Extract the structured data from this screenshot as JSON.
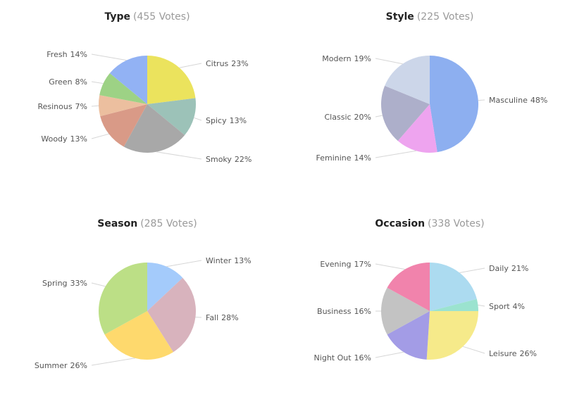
{
  "chart_data": [
    {
      "type": "pie",
      "title": "Type",
      "votes_label": "(455 Votes)",
      "slices": [
        {
          "label": "Citrus",
          "pct_text": "23%",
          "value": 23,
          "color": "#ebe35d"
        },
        {
          "label": "Spicy",
          "pct_text": "13%",
          "value": 13,
          "color": "#9cc2b8"
        },
        {
          "label": "Smoky",
          "pct_text": "22%",
          "value": 22,
          "color": "#a8a8a8"
        },
        {
          "label": "Woody",
          "pct_text": "13%",
          "value": 13,
          "color": "#d99a87"
        },
        {
          "label": "Resinous",
          "pct_text": "7%",
          "value": 7,
          "color": "#ecbf9f"
        },
        {
          "label": "Green",
          "pct_text": "8%",
          "value": 8,
          "color": "#9dd285"
        },
        {
          "label": "Fresh",
          "pct_text": "14%",
          "value": 14,
          "color": "#92b2f4"
        }
      ]
    },
    {
      "type": "pie",
      "title": "Style",
      "votes_label": "(225 Votes)",
      "slices": [
        {
          "label": "Masculine",
          "pct_text": "48%",
          "value": 48,
          "color": "#8daff0"
        },
        {
          "label": "Feminine",
          "pct_text": "14%",
          "value": 14,
          "color": "#eea4ef"
        },
        {
          "label": "Classic",
          "pct_text": "20%",
          "value": 20,
          "color": "#adafca"
        },
        {
          "label": "Modern",
          "pct_text": "19%",
          "value": 19,
          "color": "#ccd6e9"
        }
      ]
    },
    {
      "type": "pie",
      "title": "Season",
      "votes_label": "(285 Votes)",
      "slices": [
        {
          "label": "Winter",
          "pct_text": "13%",
          "value": 13,
          "color": "#a4cbfb"
        },
        {
          "label": "Fall",
          "pct_text": "28%",
          "value": 28,
          "color": "#d8b3bd"
        },
        {
          "label": "Summer",
          "pct_text": "26%",
          "value": 26,
          "color": "#fed96d"
        },
        {
          "label": "Spring",
          "pct_text": "33%",
          "value": 33,
          "color": "#bcdf86"
        }
      ]
    },
    {
      "type": "pie",
      "title": "Occasion",
      "votes_label": "(338 Votes)",
      "slices": [
        {
          "label": "Daily",
          "pct_text": "21%",
          "value": 21,
          "color": "#acdbf0"
        },
        {
          "label": "Sport",
          "pct_text": "4%",
          "value": 4,
          "color": "#9be3cf"
        },
        {
          "label": "Leisure",
          "pct_text": "26%",
          "value": 26,
          "color": "#f6ea8a"
        },
        {
          "label": "Night Out",
          "pct_text": "16%",
          "value": 16,
          "color": "#a39ce6"
        },
        {
          "label": "Business",
          "pct_text": "16%",
          "value": 16,
          "color": "#c3c3c3"
        },
        {
          "label": "Evening",
          "pct_text": "17%",
          "value": 17,
          "color": "#f183ac"
        }
      ]
    }
  ]
}
